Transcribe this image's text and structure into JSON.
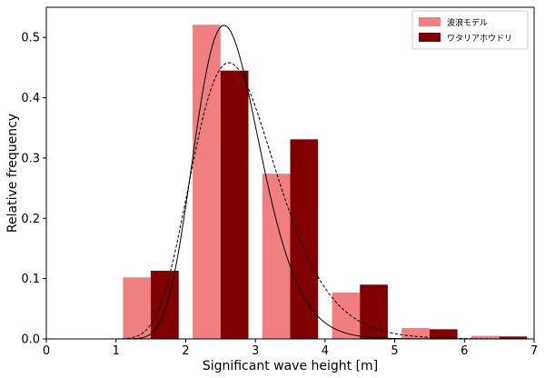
{
  "chart_data": {
    "type": "bar",
    "xlabel": "Significant wave height [m]",
    "ylabel": "Relative frequency",
    "xlim": [
      0,
      7
    ],
    "ylim": [
      0,
      0.55
    ],
    "xticks": [
      0,
      1,
      2,
      3,
      4,
      5,
      6,
      7
    ],
    "yticks": [
      0.0,
      0.1,
      0.2,
      0.3,
      0.4,
      0.5
    ],
    "ytick_labels": [
      "0.0",
      "0.1",
      "0.2",
      "0.3",
      "0.4",
      "0.5"
    ],
    "grid": false,
    "legend_position": "top-right",
    "bin_centers": [
      1.5,
      2.5,
      3.5,
      4.5,
      5.5,
      6.5
    ],
    "series": [
      {
        "name": "波浪モデル",
        "color": "#f08080",
        "values": [
          0.102,
          0.521,
          0.274,
          0.077,
          0.018,
          0.005
        ]
      },
      {
        "name": "ワタリアホウドリ",
        "color": "#800000",
        "values": [
          0.113,
          0.445,
          0.331,
          0.09,
          0.016,
          0.004
        ]
      }
    ],
    "curves": [
      {
        "style": "solid",
        "color": "#000000",
        "mode": 2.55,
        "shape": 0.185,
        "peak": 0.52
      },
      {
        "style": "dashed",
        "color": "#000000",
        "mode": 2.62,
        "shape": 0.23,
        "peak": 0.458
      }
    ]
  }
}
